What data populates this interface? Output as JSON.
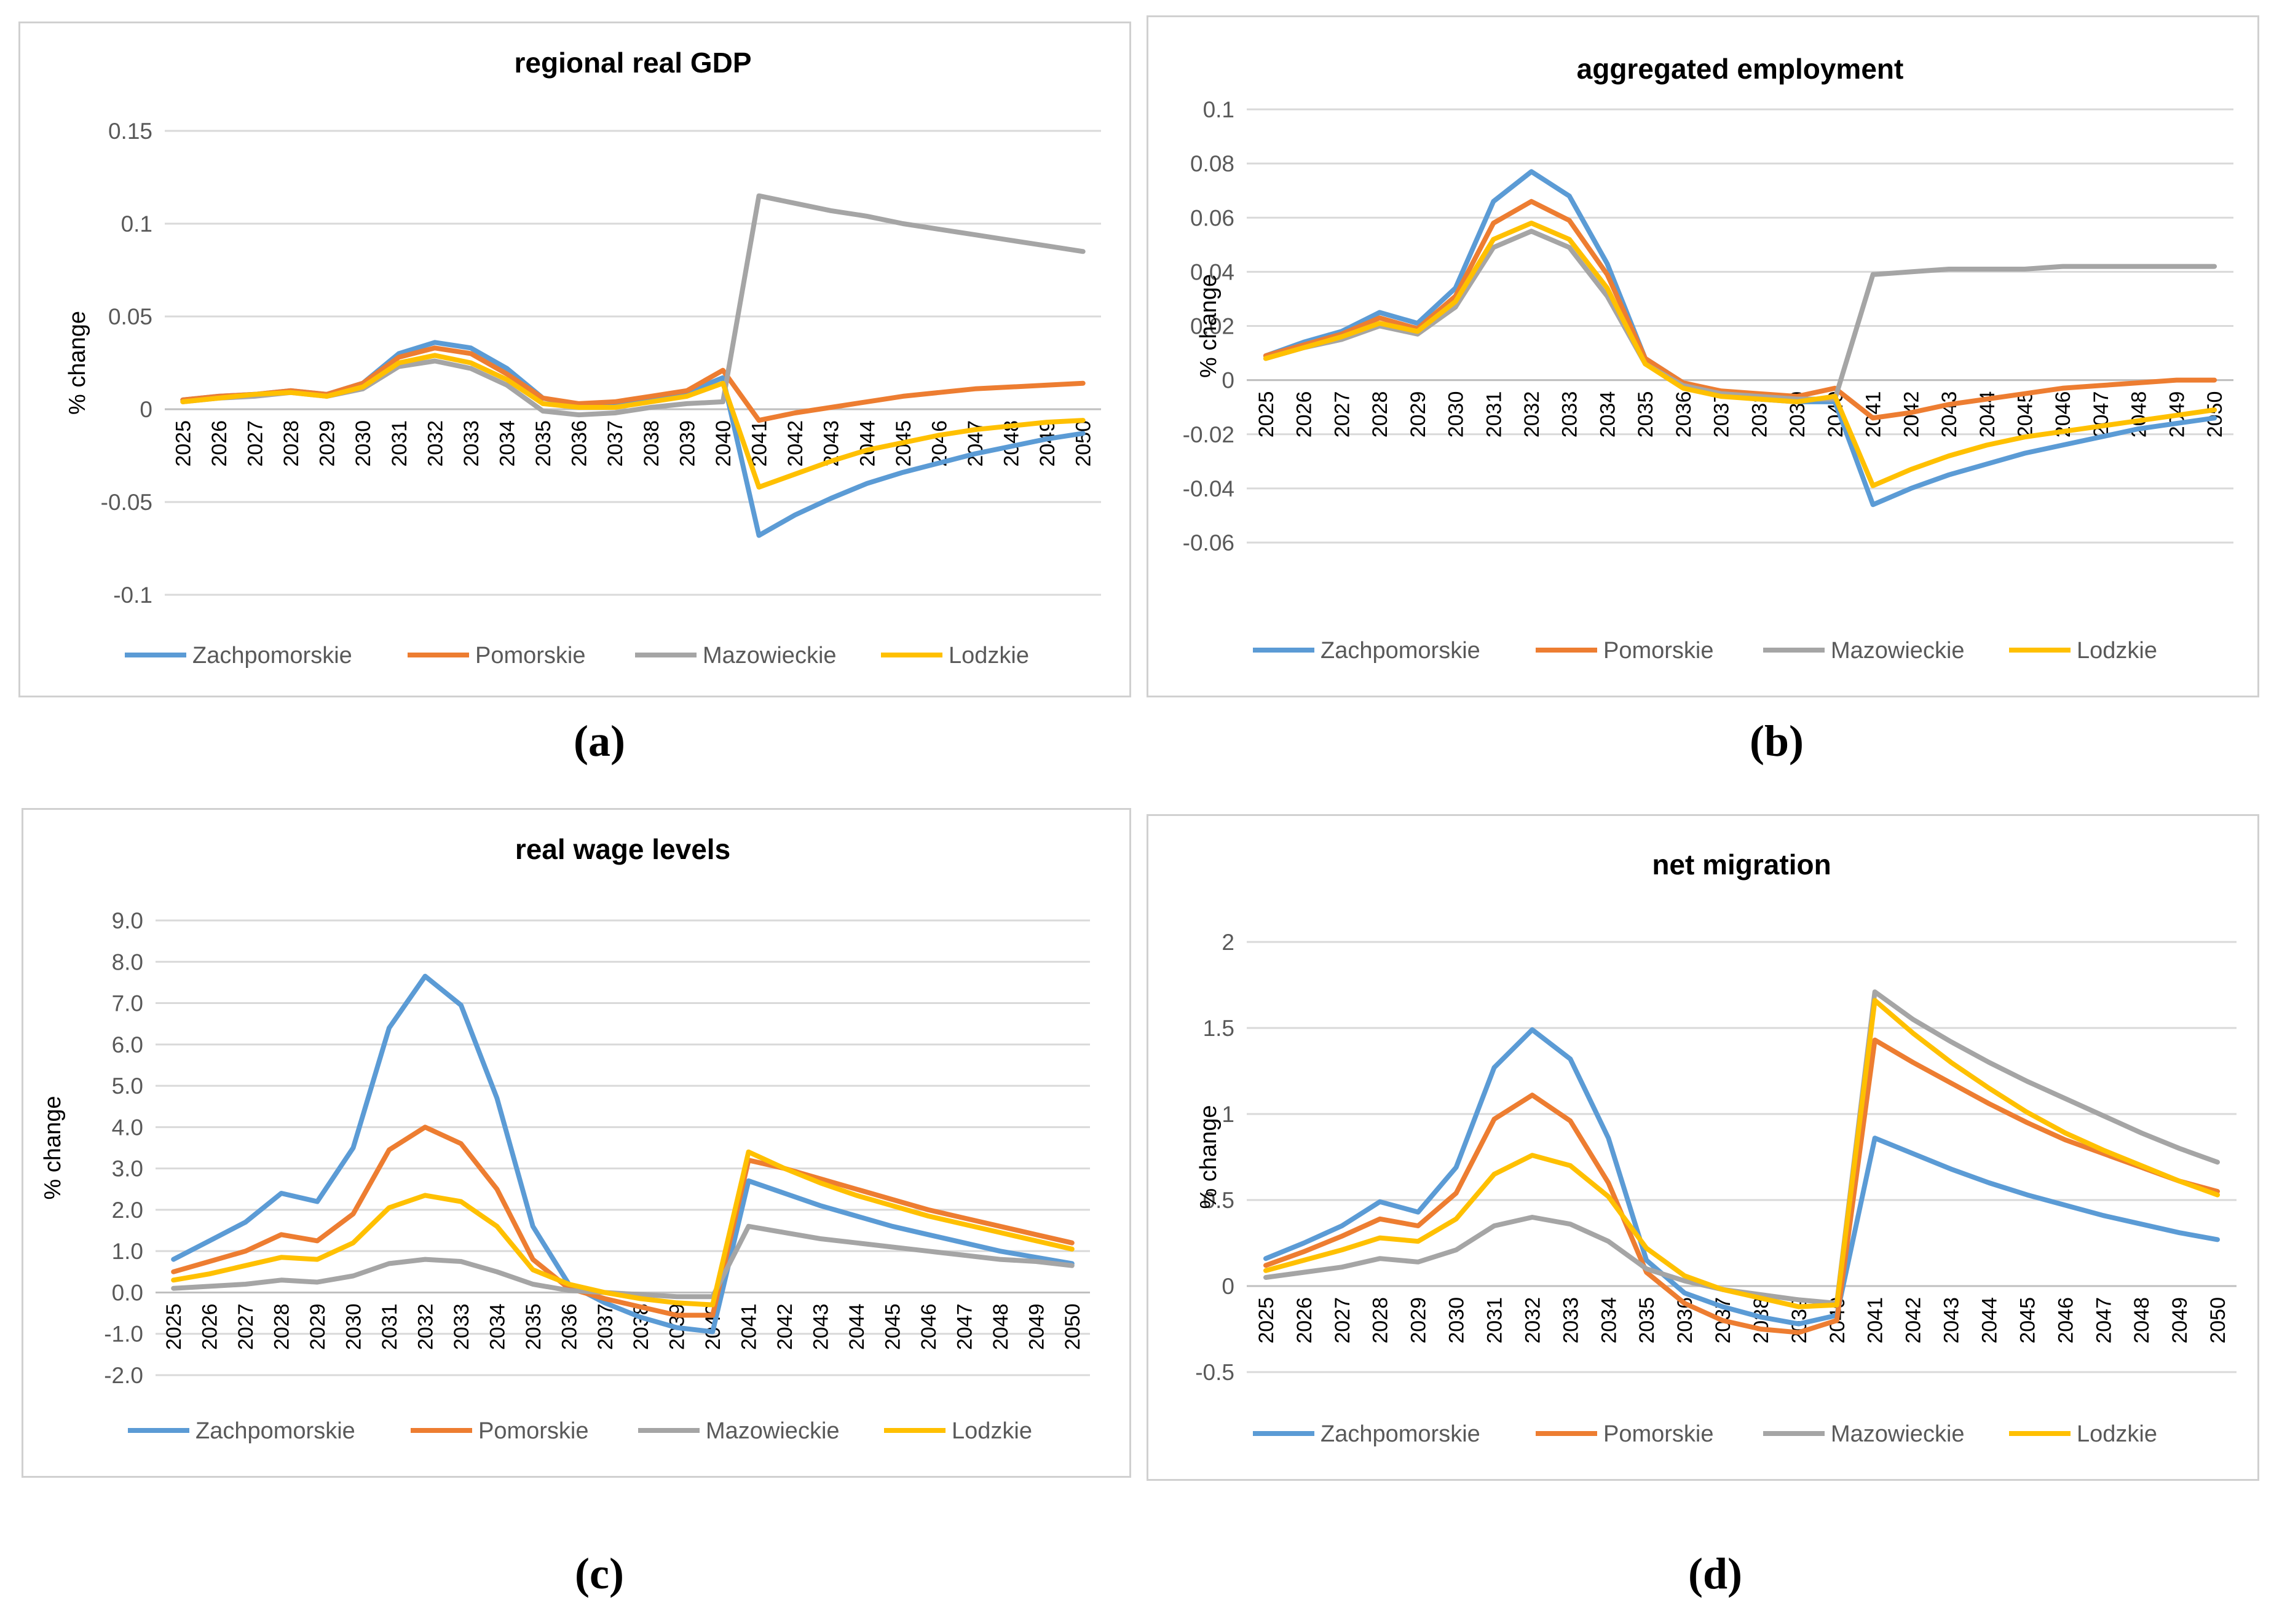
{
  "colors": {
    "Zachpomorskie": "#5b9bd5",
    "Pomorskie": "#ed7d31",
    "Mazowieckie": "#a5a5a5",
    "Lodzkie": "#ffc000",
    "grid": "#d9d9d9"
  },
  "captions": [
    "(a)",
    "(b)",
    "(c)",
    "(d)"
  ],
  "chart_data": [
    {
      "type": "line",
      "title": "regional real GDP",
      "ylabel": "% change",
      "ylim": [
        -0.1,
        0.15
      ],
      "yticks": [
        "0.15",
        "0.1",
        "0.05",
        "0",
        "-0.05",
        "-0.1"
      ],
      "ytick_values": [
        0.15,
        0.1,
        0.05,
        0,
        -0.05,
        -0.1
      ],
      "categories": [
        "2025",
        "2026",
        "2027",
        "2028",
        "2029",
        "2030",
        "2031",
        "2032",
        "2033",
        "2034",
        "2035",
        "2036",
        "2037",
        "2038",
        "2039",
        "2040",
        "2041",
        "2042",
        "2043",
        "2044",
        "2045",
        "2046",
        "2047",
        "2048",
        "2049",
        "2050"
      ],
      "series": [
        {
          "name": "Zachpomorskie",
          "values": [
            0.005,
            0.007,
            0.008,
            0.01,
            0.008,
            0.014,
            0.03,
            0.036,
            0.033,
            0.022,
            0.006,
            0.002,
            0.003,
            0.006,
            0.009,
            0.017,
            -0.068,
            -0.057,
            -0.048,
            -0.04,
            -0.034,
            -0.029,
            -0.024,
            -0.02,
            -0.016,
            -0.013
          ]
        },
        {
          "name": "Pomorskie",
          "values": [
            0.005,
            0.007,
            0.008,
            0.01,
            0.008,
            0.014,
            0.028,
            0.033,
            0.03,
            0.019,
            0.006,
            0.003,
            0.004,
            0.007,
            0.01,
            0.021,
            -0.006,
            -0.002,
            0.001,
            0.004,
            0.007,
            0.009,
            0.011,
            0.012,
            0.013,
            0.014
          ]
        },
        {
          "name": "Mazowieckie",
          "values": [
            0.004,
            0.006,
            0.007,
            0.009,
            0.007,
            0.011,
            0.023,
            0.026,
            0.022,
            0.013,
            -0.001,
            -0.003,
            -0.002,
            0.001,
            0.003,
            0.004,
            0.115,
            0.111,
            0.107,
            0.104,
            0.1,
            0.097,
            0.094,
            0.091,
            0.088,
            0.085
          ]
        },
        {
          "name": "Lodzkie",
          "values": [
            0.004,
            0.006,
            0.008,
            0.009,
            0.007,
            0.012,
            0.025,
            0.029,
            0.025,
            0.016,
            0.003,
            0.001,
            0.001,
            0.004,
            0.007,
            0.014,
            -0.042,
            -0.035,
            -0.028,
            -0.022,
            -0.018,
            -0.014,
            -0.011,
            -0.009,
            -0.007,
            -0.006
          ]
        }
      ]
    },
    {
      "type": "line",
      "title": "aggregated employment",
      "ylabel": "% change",
      "ylim": [
        -0.06,
        0.1
      ],
      "yticks": [
        "0.1",
        "0.08",
        "0.06",
        "0.04",
        "0.02",
        "0",
        "-0.02",
        "-0.04",
        "-0.06"
      ],
      "ytick_values": [
        0.1,
        0.08,
        0.06,
        0.04,
        0.02,
        0,
        -0.02,
        -0.04,
        -0.06
      ],
      "categories": [
        "2025",
        "2026",
        "2027",
        "2028",
        "2029",
        "2030",
        "2031",
        "2032",
        "2033",
        "2034",
        "2035",
        "2036",
        "2037",
        "2038",
        "2039",
        "2040",
        "2041",
        "2042",
        "2043",
        "2044",
        "2045",
        "2046",
        "2047",
        "2048",
        "2049",
        "2050"
      ],
      "series": [
        {
          "name": "Zachpomorskie",
          "values": [
            0.009,
            0.014,
            0.018,
            0.025,
            0.021,
            0.034,
            0.066,
            0.077,
            0.068,
            0.043,
            0.008,
            -0.001,
            -0.005,
            -0.007,
            -0.008,
            -0.008,
            -0.046,
            -0.04,
            -0.035,
            -0.031,
            -0.027,
            -0.024,
            -0.021,
            -0.018,
            -0.016,
            -0.014
          ]
        },
        {
          "name": "Pomorskie",
          "values": [
            0.009,
            0.013,
            0.017,
            0.023,
            0.019,
            0.031,
            0.058,
            0.066,
            0.059,
            0.039,
            0.008,
            -0.001,
            -0.004,
            -0.005,
            -0.006,
            -0.003,
            -0.014,
            -0.012,
            -0.009,
            -0.007,
            -0.005,
            -0.003,
            -0.002,
            -0.001,
            0.0,
            0.0
          ]
        },
        {
          "name": "Mazowieckie",
          "values": [
            0.008,
            0.012,
            0.015,
            0.02,
            0.017,
            0.027,
            0.049,
            0.055,
            0.049,
            0.031,
            0.006,
            -0.002,
            -0.005,
            -0.006,
            -0.007,
            -0.007,
            0.039,
            0.04,
            0.041,
            0.041,
            0.041,
            0.042,
            0.042,
            0.042,
            0.042,
            0.042
          ]
        },
        {
          "name": "Lodzkie",
          "values": [
            0.008,
            0.012,
            0.016,
            0.021,
            0.018,
            0.029,
            0.052,
            0.058,
            0.052,
            0.034,
            0.006,
            -0.003,
            -0.006,
            -0.007,
            -0.008,
            -0.006,
            -0.039,
            -0.033,
            -0.028,
            -0.024,
            -0.021,
            -0.019,
            -0.017,
            -0.015,
            -0.013,
            -0.011
          ]
        }
      ]
    },
    {
      "type": "line",
      "title": "real wage levels",
      "ylabel": "% change",
      "ylim": [
        -2.0,
        9.0
      ],
      "yticks": [
        "9.0",
        "8.0",
        "7.0",
        "6.0",
        "5.0",
        "4.0",
        "3.0",
        "2.0",
        "1.0",
        "0.0",
        "-1.0",
        "-2.0"
      ],
      "ytick_values": [
        9,
        8,
        7,
        6,
        5,
        4,
        3,
        2,
        1,
        0,
        -1,
        -2
      ],
      "categories": [
        "2025",
        "2026",
        "2027",
        "2028",
        "2029",
        "2030",
        "2031",
        "2032",
        "2033",
        "2034",
        "2035",
        "2036",
        "2037",
        "2038",
        "2039",
        "2040",
        "2041",
        "2042",
        "2043",
        "2044",
        "2045",
        "2046",
        "2047",
        "2048",
        "2049",
        "2050"
      ],
      "series": [
        {
          "name": "Zachpomorskie",
          "values": [
            0.8,
            1.25,
            1.7,
            2.4,
            2.2,
            3.5,
            6.4,
            7.65,
            6.95,
            4.7,
            1.6,
            0.2,
            -0.25,
            -0.6,
            -0.85,
            -0.95,
            2.7,
            2.4,
            2.1,
            1.85,
            1.6,
            1.4,
            1.2,
            1.0,
            0.85,
            0.7
          ]
        },
        {
          "name": "Pomorskie",
          "values": [
            0.5,
            0.75,
            1.0,
            1.4,
            1.25,
            1.9,
            3.45,
            4.0,
            3.6,
            2.5,
            0.8,
            0.1,
            -0.15,
            -0.35,
            -0.55,
            -0.55,
            3.2,
            3.0,
            2.75,
            2.5,
            2.25,
            2.0,
            1.8,
            1.6,
            1.4,
            1.2
          ]
        },
        {
          "name": "Mazowieckie",
          "values": [
            0.1,
            0.15,
            0.2,
            0.3,
            0.25,
            0.4,
            0.7,
            0.8,
            0.75,
            0.5,
            0.2,
            0.05,
            0.0,
            -0.05,
            -0.1,
            -0.1,
            1.6,
            1.45,
            1.3,
            1.2,
            1.1,
            1.0,
            0.9,
            0.8,
            0.75,
            0.65
          ]
        },
        {
          "name": "Lodzkie",
          "values": [
            0.3,
            0.45,
            0.65,
            0.85,
            0.8,
            1.2,
            2.05,
            2.35,
            2.2,
            1.6,
            0.55,
            0.2,
            0.0,
            -0.15,
            -0.25,
            -0.3,
            3.4,
            3.0,
            2.65,
            2.35,
            2.1,
            1.85,
            1.65,
            1.45,
            1.25,
            1.05
          ]
        }
      ]
    },
    {
      "type": "line",
      "title": "net migration",
      "ylabel": "% change",
      "ylim": [
        -0.5,
        2.0
      ],
      "yticks": [
        "2",
        "1.5",
        "1",
        "0.5",
        "0",
        "-0.5"
      ],
      "ytick_values": [
        2,
        1.5,
        1,
        0.5,
        0,
        -0.5
      ],
      "categories": [
        "2025",
        "2026",
        "2027",
        "2028",
        "2029",
        "2030",
        "2031",
        "2032",
        "2033",
        "2034",
        "2035",
        "2036",
        "2037",
        "2038",
        "2039",
        "2040",
        "2041",
        "2042",
        "2043",
        "2044",
        "2045",
        "2046",
        "2047",
        "2048",
        "2049",
        "2050"
      ],
      "series": [
        {
          "name": "Zachpomorskie",
          "values": [
            0.16,
            0.25,
            0.35,
            0.49,
            0.43,
            0.69,
            1.27,
            1.49,
            1.32,
            0.86,
            0.15,
            -0.04,
            -0.12,
            -0.18,
            -0.22,
            -0.17,
            0.86,
            0.77,
            0.68,
            0.6,
            0.53,
            0.47,
            0.41,
            0.36,
            0.31,
            0.27
          ]
        },
        {
          "name": "Pomorskie",
          "values": [
            0.12,
            0.2,
            0.29,
            0.39,
            0.35,
            0.54,
            0.97,
            1.11,
            0.96,
            0.6,
            0.08,
            -0.1,
            -0.2,
            -0.25,
            -0.27,
            -0.2,
            1.43,
            1.3,
            1.18,
            1.06,
            0.95,
            0.85,
            0.77,
            0.69,
            0.61,
            0.55
          ]
        },
        {
          "name": "Mazowieckie",
          "values": [
            0.05,
            0.08,
            0.11,
            0.16,
            0.14,
            0.21,
            0.35,
            0.4,
            0.36,
            0.26,
            0.1,
            0.03,
            -0.02,
            -0.05,
            -0.08,
            -0.1,
            1.71,
            1.55,
            1.42,
            1.3,
            1.19,
            1.09,
            0.99,
            0.89,
            0.8,
            0.72
          ]
        },
        {
          "name": "Lodzkie",
          "values": [
            0.09,
            0.15,
            0.21,
            0.28,
            0.26,
            0.39,
            0.65,
            0.76,
            0.7,
            0.52,
            0.22,
            0.06,
            -0.02,
            -0.07,
            -0.12,
            -0.11,
            1.66,
            1.47,
            1.3,
            1.15,
            1.01,
            0.89,
            0.79,
            0.7,
            0.61,
            0.53
          ]
        }
      ]
    }
  ]
}
